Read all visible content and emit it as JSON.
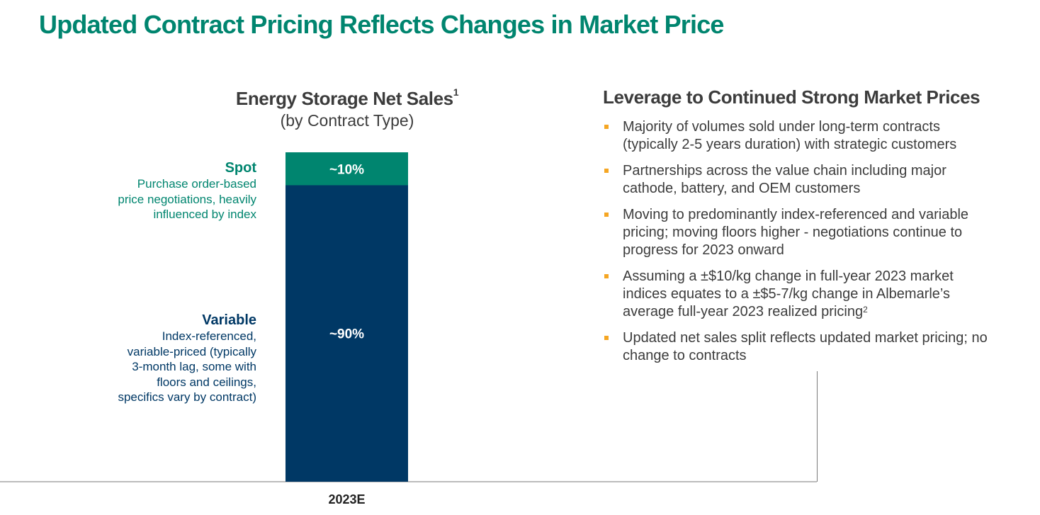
{
  "title": "Updated Contract Pricing Reflects Changes in Market Price",
  "chart_data": {
    "type": "bar",
    "stacked": true,
    "title": "Energy Storage Net Sales",
    "title_footnote": "1",
    "subtitle": "(by Contract Type)",
    "categories": [
      "2023E"
    ],
    "series": [
      {
        "name": "Variable",
        "values": [
          90
        ],
        "label": "~90%",
        "color": "#003865"
      },
      {
        "name": "Spot",
        "values": [
          10
        ],
        "label": "~10%",
        "color": "#00856f"
      }
    ],
    "ylim": [
      0,
      100
    ],
    "grid": false
  },
  "segments": {
    "spot": {
      "name": "Spot",
      "desc_lines": [
        "Purchase order-based",
        "price negotiations, heavily",
        "influenced by index"
      ]
    },
    "variable": {
      "name": "Variable",
      "desc_lines": [
        "Index-referenced,",
        "variable-priced (typically",
        "3-month lag, some with",
        "floors and ceilings,",
        "specifics vary by contract)"
      ]
    }
  },
  "right_panel": {
    "heading": "Leverage to Continued Strong Market Prices",
    "bullets": [
      {
        "lines": [
          "Majority of volumes sold under long-term contracts",
          "(typically 2-5 years duration) with strategic customers"
        ]
      },
      {
        "lines": [
          "Partnerships across the value chain including major",
          "cathode, battery, and OEM customers"
        ]
      },
      {
        "lines": [
          "Moving to predominantly index-referenced and variable",
          "pricing; moving floors higher - negotiations continue to",
          "progress for 2023 onward"
        ]
      },
      {
        "lines": [
          "Assuming a ±$10/kg change in full-year 2023 market",
          "indices equates to a ±$5-7/kg change in Albemarle’s",
          "average full-year 2023 realized pricing"
        ],
        "footnote": "2"
      },
      {
        "lines": [
          "Updated net sales split reflects updated market pricing; no",
          "change to contracts"
        ]
      }
    ]
  },
  "colors": {
    "title_green": "#00856f",
    "navy": "#003865",
    "bullet_orange": "#f5a623",
    "text_gray": "#3c3c3c"
  }
}
